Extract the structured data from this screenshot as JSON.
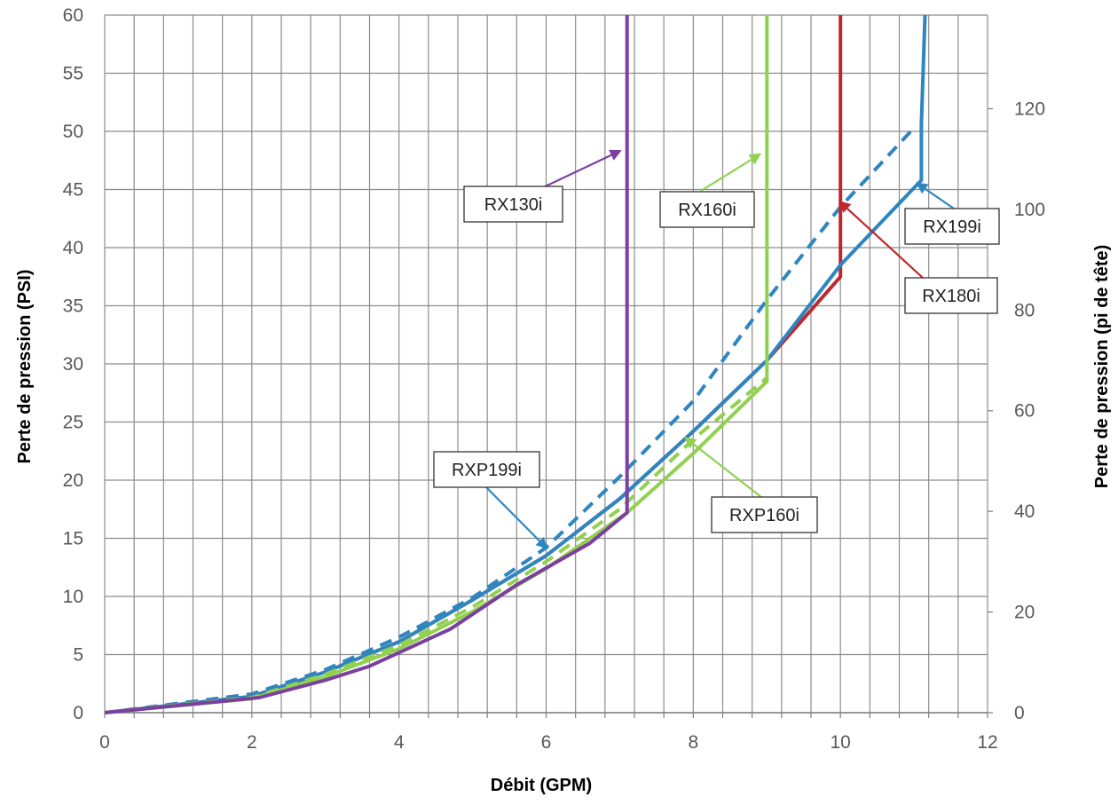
{
  "chart_data": {
    "type": "line",
    "title": "",
    "xlabel": "Débit (GPM)",
    "ylabel": "Perte de pression (PSI)",
    "y2label": "Perte de pression (pi de tête)",
    "xlim": [
      0,
      12
    ],
    "ylim": [
      0,
      60
    ],
    "y2lim": [
      0,
      138.6
    ],
    "x_ticks": [
      0,
      2,
      4,
      6,
      8,
      10,
      12
    ],
    "y_ticks": [
      0,
      5,
      10,
      15,
      20,
      25,
      30,
      35,
      40,
      45,
      50,
      55,
      60
    ],
    "y2_ticks": [
      0,
      20,
      40,
      60,
      80,
      100,
      120
    ],
    "grid": true,
    "series": [
      {
        "name": "RXP199i",
        "color": "#2E86C1",
        "dashed": true,
        "points": [
          [
            0,
            0
          ],
          [
            2,
            1.6
          ],
          [
            3,
            3.7
          ],
          [
            4,
            6.5
          ],
          [
            5,
            9.9
          ],
          [
            6,
            14.2
          ],
          [
            7,
            20.3
          ],
          [
            8,
            26.8
          ],
          [
            9,
            35.5
          ],
          [
            10,
            43.5
          ],
          [
            11,
            50.3
          ]
        ]
      },
      {
        "name": "RX180i",
        "color": "#C0272D",
        "dashed": false,
        "points": [
          [
            0,
            0
          ],
          [
            2,
            1.4
          ],
          [
            3,
            3.5
          ],
          [
            4,
            6.1
          ],
          [
            5,
            9.7
          ],
          [
            6,
            13.5
          ],
          [
            7,
            18.4
          ],
          [
            8,
            24.2
          ],
          [
            9,
            30.3
          ],
          [
            10,
            37.5
          ],
          [
            10,
            44.2
          ],
          [
            10,
            60
          ]
        ]
      },
      {
        "name": "RX199i",
        "color": "#2E86C1",
        "dashed": false,
        "points": [
          [
            0,
            0
          ],
          [
            2,
            1.4
          ],
          [
            3,
            3.5
          ],
          [
            4,
            6.1
          ],
          [
            5,
            9.7
          ],
          [
            6,
            13.5
          ],
          [
            7,
            18.4
          ],
          [
            8,
            24.2
          ],
          [
            9,
            30.3
          ],
          [
            10,
            38.5
          ],
          [
            11.1,
            45.8
          ],
          [
            11.1,
            50.6
          ],
          [
            11.15,
            60
          ]
        ]
      },
      {
        "name": "RXP160i",
        "color": "#92D050",
        "dashed": true,
        "points": [
          [
            0,
            0
          ],
          [
            2,
            1.3
          ],
          [
            3,
            3.3
          ],
          [
            4,
            5.8
          ],
          [
            5,
            9.1
          ],
          [
            6,
            13.0
          ],
          [
            7,
            17.5
          ],
          [
            8,
            23.5
          ],
          [
            9,
            28.8
          ]
        ]
      },
      {
        "name": "RX160i",
        "color": "#92D050",
        "dashed": false,
        "points": [
          [
            0,
            0
          ],
          [
            2,
            1.2
          ],
          [
            3,
            3.1
          ],
          [
            4,
            5.5
          ],
          [
            5,
            8.7
          ],
          [
            6,
            12.4
          ],
          [
            7.1,
            17.2
          ],
          [
            8,
            22.3
          ],
          [
            9,
            28.5
          ],
          [
            9,
            60
          ]
        ]
      },
      {
        "name": "RX130i",
        "color": "#7B3FA0",
        "dashed": false,
        "points": [
          [
            0,
            0
          ],
          [
            2.1,
            1.3
          ],
          [
            3,
            2.8
          ],
          [
            3.6,
            4.0
          ],
          [
            4.7,
            7.2
          ],
          [
            5.6,
            11.0
          ],
          [
            6.6,
            14.6
          ],
          [
            7.1,
            17.2
          ],
          [
            7.1,
            60
          ]
        ]
      }
    ],
    "annotations": [
      {
        "label": "RX130i",
        "color": "#7B3FA0",
        "arrow_to": [
          7.0,
          48.3
        ]
      },
      {
        "label": "RX160i",
        "color": "#92D050",
        "arrow_to": [
          8.9,
          48.0
        ]
      },
      {
        "label": "RX199i",
        "color": "#2E86C1",
        "arrow_to": [
          11.05,
          45.5
        ]
      },
      {
        "label": "RX180i",
        "color": "#C0272D",
        "arrow_to": [
          10.0,
          43.9
        ]
      },
      {
        "label": "RXP199i",
        "color": "#2E86C1",
        "arrow_to": [
          6.0,
          14.2
        ]
      },
      {
        "label": "RXP160i",
        "color": "#92D050",
        "arrow_to": [
          7.9,
          23.6
        ]
      }
    ]
  }
}
